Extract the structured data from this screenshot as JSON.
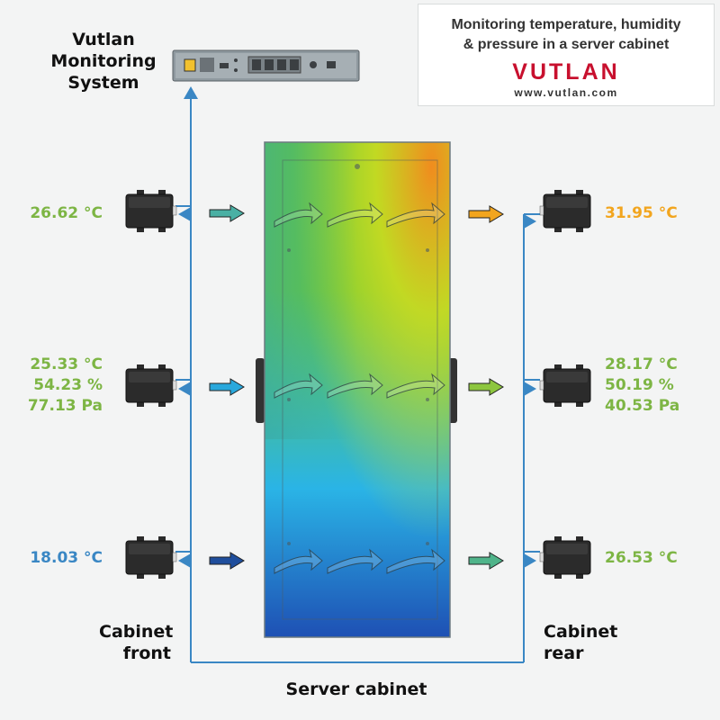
{
  "logo": {
    "caption_line1": "Monitoring temperature, humidity",
    "caption_line2": "& pressure in a server cabinet",
    "brand": "VUTLAN",
    "url": "www.vutlan.com"
  },
  "monitoring_system": {
    "line1": "Vutlan",
    "line2": "Monitoring",
    "line3": "System"
  },
  "labels": {
    "cabinet_front_line1": "Cabinet",
    "cabinet_front_line2": "front",
    "cabinet_rear_line1": "Cabinet",
    "cabinet_rear_line2": "rear",
    "server_cabinet": "Server cabinet"
  },
  "sensors": {
    "front_top": {
      "temperature": "26.62 °C",
      "color": "#7db544"
    },
    "front_middle": {
      "temperature": "25.33 °C",
      "humidity": "54.23 %",
      "pressure": "77.13 Pa",
      "color": "#7db544"
    },
    "front_bottom": {
      "temperature": "18.03 °C",
      "color": "#3a87c4"
    },
    "rear_top": {
      "temperature": "31.95 °C",
      "color": "#f2a51e"
    },
    "rear_middle": {
      "temperature": "28.17 °C",
      "humidity": "50.19 %",
      "pressure": "40.53 Pa",
      "color": "#7db544"
    },
    "rear_bottom": {
      "temperature": "26.53 °C",
      "color": "#7db544"
    }
  },
  "colors": {
    "wire": "#3a87c4",
    "airflow_front_top": "#4ab0a4",
    "airflow_front_middle": "#29a8dc",
    "airflow_front_bottom": "#1f4e9c",
    "airflow_rear_top": "#f2a51e",
    "airflow_rear_middle": "#8dc63f",
    "airflow_rear_bottom": "#4fb48a",
    "heat_cold": "#1e50b4",
    "heat_cool": "#2ab4e6",
    "heat_mid": "#64c83c",
    "heat_warm": "#d2dc1e",
    "heat_hot": "#f08c1e"
  }
}
